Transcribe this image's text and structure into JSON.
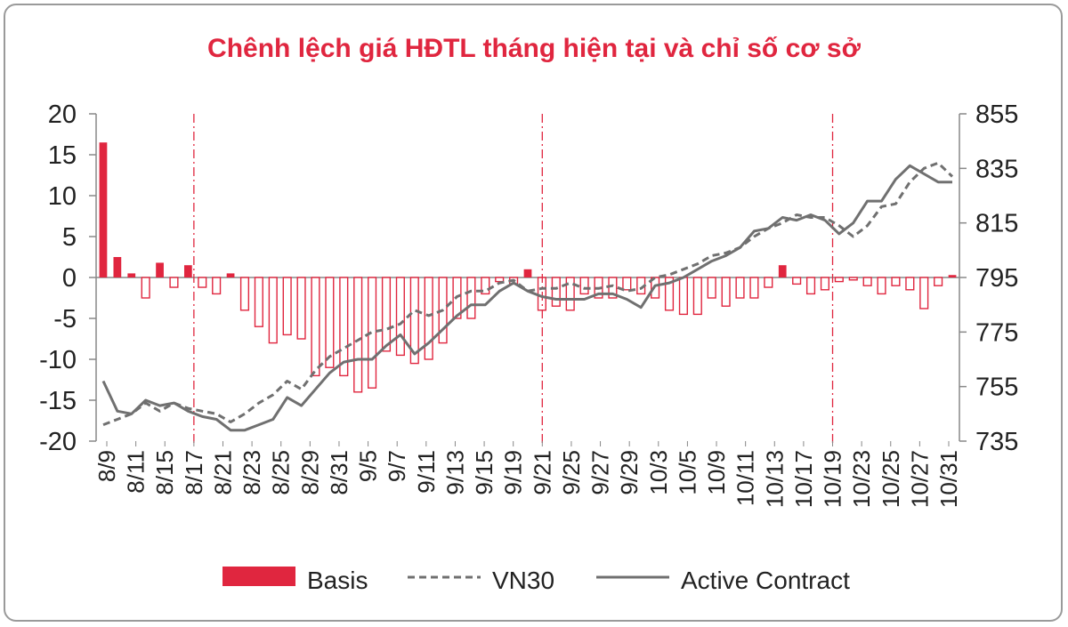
{
  "chart_data": {
    "type": "bar+line",
    "title": "Chênh lệch giá HĐTL tháng hiện tại và chỉ số cơ sở",
    "title_color": "#e0263f",
    "left_axis": {
      "min": -20,
      "max": 20,
      "ticks": [
        -20,
        -15,
        -10,
        -5,
        0,
        5,
        10,
        15,
        20
      ]
    },
    "right_axis": {
      "min": 735,
      "max": 855,
      "ticks": [
        735,
        755,
        775,
        795,
        815,
        835,
        855
      ]
    },
    "x_labels": [
      "8/9",
      "8/11",
      "8/15",
      "8/17",
      "8/21",
      "8/23",
      "8/25",
      "8/29",
      "8/31",
      "9/5",
      "9/7",
      "9/11",
      "9/13",
      "9/15",
      "9/19",
      "9/21",
      "9/25",
      "9/27",
      "9/29",
      "10/3",
      "10/5",
      "10/9",
      "10/11",
      "10/13",
      "10/17",
      "10/19",
      "10/23",
      "10/25",
      "10/27",
      "10/31"
    ],
    "expiry_markers": [
      "8/17",
      "9/21",
      "10/19"
    ],
    "expiry_color": "#e0263f",
    "series": [
      {
        "name": "Basis",
        "color": "#e0263f",
        "values": [
          16.5,
          2.5,
          0.5,
          -2.5,
          1.8,
          -1.2,
          1.5,
          -1.2,
          -2,
          0.5,
          -4,
          -6,
          -8,
          -7,
          -7.5,
          -12,
          -11,
          -12,
          -14,
          -13.5,
          -9,
          -9.5,
          -10.5,
          -10,
          -8,
          -5,
          -5,
          -2,
          -0.5,
          -0.8,
          1,
          -4,
          -3.5,
          -4,
          -2,
          -2.5,
          -2.5,
          -1.5,
          -2,
          -2.5,
          -4,
          -4.5,
          -4.5,
          -2.5,
          -3.5,
          -2.5,
          -2.5,
          -1.2,
          1.5,
          -0.8,
          -2,
          -1.5,
          -0.5,
          -0.3,
          -1,
          -2,
          -1,
          -1.5,
          -3.8,
          -1,
          0.3
        ]
      },
      {
        "name": "VN30",
        "color": "#707070",
        "values": [
          741,
          743,
          745,
          749,
          746,
          749,
          747,
          746,
          745,
          742,
          745,
          749,
          752,
          757,
          754,
          761,
          766,
          769,
          772,
          775,
          776,
          778,
          783,
          781,
          783,
          788,
          790,
          790,
          793,
          794,
          790,
          791,
          791,
          793,
          791,
          791,
          792,
          790,
          791,
          795,
          796,
          798,
          800,
          803,
          804,
          806,
          810,
          813,
          815,
          818,
          817,
          817,
          814,
          810,
          814,
          821,
          822,
          830,
          835,
          837,
          832
        ]
      },
      {
        "name": "Active Contract",
        "color": "#707070",
        "values": [
          757,
          746,
          745,
          750,
          748,
          749,
          746,
          744,
          743,
          739,
          739,
          741,
          743,
          751,
          748,
          754,
          760,
          764,
          765,
          765,
          770,
          774,
          767,
          771,
          776,
          781,
          785,
          785,
          790,
          793,
          790,
          788,
          787,
          787,
          787,
          789,
          789,
          787,
          784,
          792,
          793,
          795,
          798,
          801,
          803,
          806,
          812,
          813,
          817,
          816,
          818,
          816,
          811,
          815,
          823,
          823,
          831,
          836,
          833,
          830,
          830
        ]
      }
    ]
  }
}
